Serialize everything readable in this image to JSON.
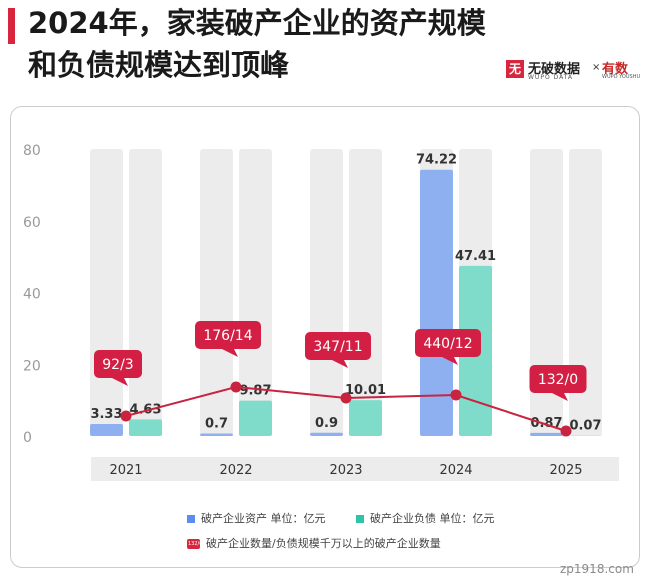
{
  "title": "2024年，家装破产企业的资产规模和负债规模达到顶峰",
  "logo": {
    "icon": "无",
    "main": "无破数据",
    "sub": "WUPO DATA",
    "sep": "×",
    "partner": "有数",
    "partner_sub": "WUPO YOUSHU"
  },
  "colors": {
    "assets": "#8fb0f0",
    "liabilities": "#7fdccb",
    "track": "#ececec",
    "count_line": "#c8233f",
    "label_box": "#d21f43",
    "year_band": "#ececec"
  },
  "chart_data": {
    "type": "bar",
    "categories": [
      "2021",
      "2022",
      "2023",
      "2024",
      "2025"
    ],
    "series": [
      {
        "name": "破产企业资产 单位：亿元",
        "values": [
          3.33,
          0.7,
          0.9,
          74.22,
          0.87
        ]
      },
      {
        "name": "破产企业负债 单位：亿元",
        "values": [
          4.63,
          9.87,
          10.01,
          47.41,
          0.07
        ]
      }
    ],
    "count_labels": [
      "92/3",
      "176/14",
      "347/11",
      "440/12",
      "132/0"
    ],
    "count_series_name": "破产企业数量/负债规模千万以上的破产企业数量",
    "legend_icon_text": "132/0",
    "yticks": [
      0,
      20,
      40,
      60,
      80
    ],
    "ylim": [
      0,
      80
    ],
    "xlabel": "",
    "ylabel": "",
    "legend": "bottom"
  },
  "watermark": "zp1918.com"
}
